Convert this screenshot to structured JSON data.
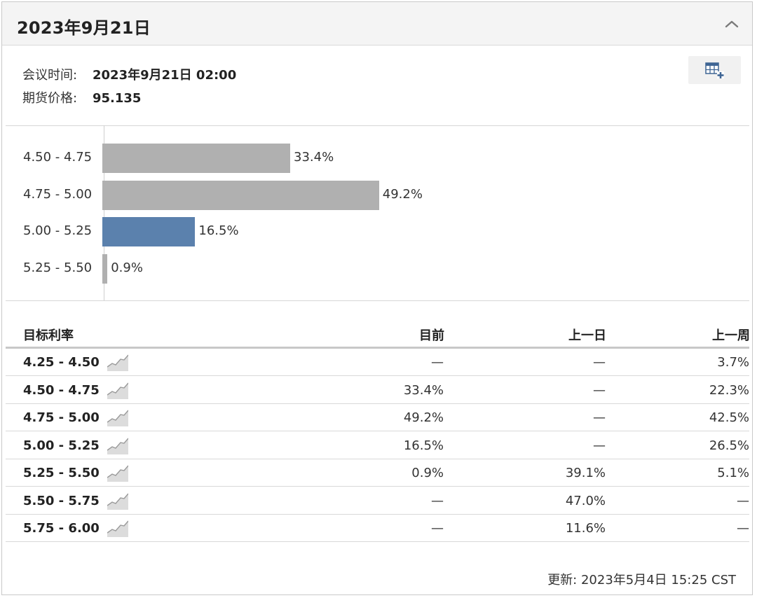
{
  "header": {
    "title": "2023年9月21日"
  },
  "meta": {
    "meeting_label": "会议时间:",
    "meeting_value": "2023年9月21日 02:00",
    "futures_label": "期货价格:",
    "futures_value": "95.135"
  },
  "chart_data": {
    "type": "bar",
    "orientation": "horizontal",
    "categories": [
      "4.50 - 4.75",
      "4.75 - 5.00",
      "5.00 - 5.25",
      "5.25 - 5.50"
    ],
    "values": [
      33.4,
      49.2,
      16.5,
      0.9
    ],
    "value_labels": [
      "33.4%",
      "49.2%",
      "16.5%",
      "0.9%"
    ],
    "highlighted_category": "5.00 - 5.25",
    "colors": {
      "default": "#b0b0b0",
      "highlight": "#5b81ad"
    },
    "xlim": [
      0,
      100
    ],
    "grid": false
  },
  "table": {
    "headers": {
      "rate": "目标利率",
      "current": "目前",
      "prev_day": "上一日",
      "prev_week": "上一周"
    },
    "rows": [
      {
        "rate": "4.25 - 4.50",
        "current": "—",
        "prev_day": "—",
        "prev_week": "3.7%"
      },
      {
        "rate": "4.50 - 4.75",
        "current": "33.4%",
        "prev_day": "—",
        "prev_week": "22.3%"
      },
      {
        "rate": "4.75 - 5.00",
        "current": "49.2%",
        "prev_day": "—",
        "prev_week": "42.5%"
      },
      {
        "rate": "5.00 - 5.25",
        "current": "16.5%",
        "prev_day": "—",
        "prev_week": "26.5%"
      },
      {
        "rate": "5.25 - 5.50",
        "current": "0.9%",
        "prev_day": "39.1%",
        "prev_week": "5.1%"
      },
      {
        "rate": "5.50 - 5.75",
        "current": "—",
        "prev_day": "47.0%",
        "prev_week": "—"
      },
      {
        "rate": "5.75 - 6.00",
        "current": "—",
        "prev_day": "11.6%",
        "prev_week": "—"
      }
    ]
  },
  "footer": {
    "updated": "更新: 2023年5月4日 15:25 CST"
  },
  "icons": {
    "collapse": "chevron-up-icon",
    "export": "table-add-icon",
    "row_chart": "sparkline-chart-icon"
  }
}
